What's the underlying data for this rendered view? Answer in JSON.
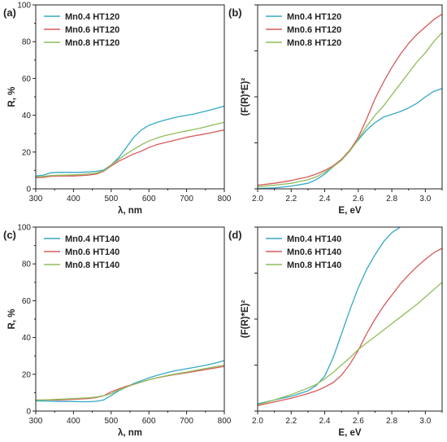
{
  "chart_data": [
    {
      "type": "line",
      "panel_label": "(a)",
      "xlabel": "λ, nm",
      "ylabel": "R, %",
      "xlim": [
        300,
        800
      ],
      "ylim": [
        0,
        100
      ],
      "x_ticks": [
        "300",
        "400",
        "500",
        "600",
        "700",
        "800"
      ],
      "y_ticks": [
        "0",
        "20",
        "40",
        "60",
        "80",
        "100"
      ],
      "legend_position": "top-left",
      "series": [
        {
          "name": "Mn0.4 HT120",
          "color": "#35a9c4",
          "x": [
            300,
            320,
            340,
            360,
            380,
            400,
            420,
            440,
            460,
            480,
            500,
            520,
            540,
            560,
            580,
            600,
            620,
            640,
            660,
            680,
            700,
            720,
            740,
            760,
            780,
            800
          ],
          "y": [
            7,
            7.5,
            8.7,
            9,
            9,
            9,
            9,
            9.2,
            9.5,
            10.2,
            13,
            17,
            22.5,
            28,
            32,
            34.5,
            36,
            37.3,
            38.3,
            39.3,
            40,
            40.7,
            41.7,
            42.7,
            43.8,
            45
          ]
        },
        {
          "name": "Mn0.6 HT120",
          "color": "#d65a5a",
          "x": [
            300,
            320,
            340,
            360,
            380,
            400,
            420,
            440,
            460,
            480,
            500,
            520,
            540,
            560,
            580,
            600,
            620,
            640,
            660,
            680,
            700,
            720,
            740,
            760,
            780,
            800
          ],
          "y": [
            6,
            6.3,
            6.8,
            7,
            7,
            7,
            7.2,
            7.5,
            8,
            9.5,
            12.5,
            15,
            17,
            19,
            20.5,
            22.5,
            24,
            25,
            26,
            27,
            28,
            28.8,
            29.5,
            30.3,
            31.2,
            32
          ]
        },
        {
          "name": "Mn0.8 HT120",
          "color": "#8fbd5a",
          "x": [
            300,
            320,
            340,
            360,
            380,
            400,
            420,
            440,
            460,
            480,
            500,
            520,
            540,
            560,
            580,
            600,
            620,
            640,
            660,
            680,
            700,
            720,
            740,
            760,
            780,
            800
          ],
          "y": [
            6.5,
            6.8,
            7.2,
            7.4,
            7.5,
            7.6,
            7.8,
            8.1,
            8.6,
            9.8,
            13,
            16,
            19,
            21.5,
            24,
            26,
            27.5,
            28.8,
            29.8,
            30.7,
            31.5,
            32.3,
            33.2,
            34.2,
            35.2,
            36.2
          ]
        }
      ]
    },
    {
      "type": "line",
      "panel_label": "(b)",
      "xlabel": "E, eV",
      "ylabel": "(F(R)*E)²",
      "xlim": [
        2.0,
        3.1
      ],
      "ylim": [
        0,
        100
      ],
      "x_ticks": [
        "2.0",
        "2.2",
        "2.4",
        "2.6",
        "2.8",
        "3.0"
      ],
      "y_ticks": [],
      "legend_position": "top-left",
      "series": [
        {
          "name": "Mn0.4 HT120",
          "color": "#35a9c4",
          "x": [
            2.0,
            2.1,
            2.2,
            2.3,
            2.35,
            2.4,
            2.45,
            2.5,
            2.55,
            2.6,
            2.65,
            2.7,
            2.75,
            2.8,
            2.85,
            2.9,
            2.95,
            3.0,
            3.05,
            3.1
          ],
          "y": [
            0.2,
            0.5,
            1.5,
            3,
            5,
            8,
            12,
            16,
            21,
            26.5,
            32,
            36,
            39,
            40.5,
            42,
            44,
            46.5,
            50,
            53,
            54.5
          ]
        },
        {
          "name": "Mn0.6 HT120",
          "color": "#d65a5a",
          "x": [
            2.0,
            2.1,
            2.2,
            2.3,
            2.35,
            2.4,
            2.45,
            2.5,
            2.55,
            2.6,
            2.65,
            2.7,
            2.75,
            2.8,
            2.85,
            2.9,
            2.95,
            3.0,
            3.05,
            3.1
          ],
          "y": [
            2,
            3,
            4.5,
            6.5,
            8,
            10,
            12.5,
            16,
            21,
            28,
            38,
            49,
            58,
            66,
            73,
            79,
            84,
            88,
            92,
            95
          ]
        },
        {
          "name": "Mn0.8 HT120",
          "color": "#8fbd5a",
          "x": [
            2.0,
            2.1,
            2.2,
            2.3,
            2.35,
            2.4,
            2.45,
            2.5,
            2.55,
            2.6,
            2.65,
            2.7,
            2.75,
            2.8,
            2.85,
            2.9,
            2.95,
            3.0,
            3.05,
            3.1
          ],
          "y": [
            1.2,
            2,
            3,
            5,
            6.5,
            9,
            12,
            15.5,
            20.5,
            27,
            34,
            40,
            45,
            51,
            57,
            63,
            69,
            74,
            80,
            85
          ]
        }
      ]
    },
    {
      "type": "line",
      "panel_label": "(c)",
      "xlabel": "λ, nm",
      "ylabel": "R, %",
      "xlim": [
        300,
        800
      ],
      "ylim": [
        0,
        100
      ],
      "x_ticks": [
        "300",
        "400",
        "500",
        "600",
        "700",
        "800"
      ],
      "y_ticks": [
        "0",
        "20",
        "40",
        "60",
        "80",
        "100"
      ],
      "legend_position": "top-left",
      "series": [
        {
          "name": "Mn0.4 HT140",
          "color": "#35a9c4",
          "x": [
            300,
            320,
            340,
            360,
            380,
            400,
            420,
            440,
            460,
            480,
            500,
            520,
            540,
            560,
            580,
            600,
            620,
            640,
            660,
            680,
            700,
            720,
            740,
            760,
            780,
            800
          ],
          "y": [
            5.5,
            5.5,
            5.3,
            5.2,
            5.2,
            5.2,
            5.1,
            5.1,
            5.3,
            6,
            8.5,
            11,
            13,
            15,
            16.5,
            18,
            19.3,
            20.5,
            21.5,
            22.3,
            23,
            23.7,
            24.5,
            25.3,
            26.3,
            27.5
          ]
        },
        {
          "name": "Mn0.6 HT140",
          "color": "#d65a5a",
          "x": [
            300,
            320,
            340,
            360,
            380,
            400,
            420,
            440,
            460,
            480,
            500,
            520,
            540,
            560,
            580,
            600,
            620,
            640,
            660,
            680,
            700,
            720,
            740,
            760,
            780,
            800
          ],
          "y": [
            6,
            6,
            6,
            6,
            6.2,
            6.4,
            6.6,
            6.8,
            7.3,
            8.3,
            10.5,
            12,
            13.5,
            14.5,
            15.8,
            17,
            18,
            18.8,
            19.5,
            20.2,
            20.8,
            21.5,
            22.2,
            22.9,
            23.6,
            24.3
          ]
        },
        {
          "name": "Mn0.8 HT140",
          "color": "#8fbd5a",
          "x": [
            300,
            320,
            340,
            360,
            380,
            400,
            420,
            440,
            460,
            480,
            500,
            520,
            540,
            560,
            580,
            600,
            620,
            640,
            660,
            680,
            700,
            720,
            740,
            760,
            780,
            800
          ],
          "y": [
            6,
            6,
            6.2,
            6.4,
            6.6,
            6.8,
            7,
            7.2,
            7.6,
            8.3,
            9.5,
            11.5,
            13,
            14.5,
            15.8,
            17,
            18,
            19,
            19.8,
            20.5,
            21.2,
            22,
            22.8,
            23.5,
            24.3,
            25
          ]
        }
      ]
    },
    {
      "type": "line",
      "panel_label": "(d)",
      "xlabel": "E, eV",
      "ylabel": "(F(R)*E)²",
      "xlim": [
        2.0,
        3.1
      ],
      "ylim": [
        0,
        100
      ],
      "x_ticks": [
        "2.0",
        "2.2",
        "2.4",
        "2.6",
        "2.8",
        "3.0"
      ],
      "y_ticks": [],
      "legend_position": "top-left",
      "series": [
        {
          "name": "Mn0.4 HT140",
          "color": "#35a9c4",
          "x": [
            2.0,
            2.1,
            2.2,
            2.3,
            2.35,
            2.4,
            2.45,
            2.5,
            2.55,
            2.6,
            2.65,
            2.7,
            2.75,
            2.8,
            2.85
          ],
          "y": [
            4,
            6,
            8,
            11,
            14,
            19,
            29,
            42,
            55,
            67,
            77,
            85,
            92,
            97,
            100
          ]
        },
        {
          "name": "Mn0.6 HT140",
          "color": "#d65a5a",
          "x": [
            2.0,
            2.1,
            2.2,
            2.3,
            2.35,
            2.4,
            2.45,
            2.5,
            2.55,
            2.6,
            2.65,
            2.7,
            2.75,
            2.8,
            2.85,
            2.9,
            2.95,
            3.0,
            3.05,
            3.1
          ],
          "y": [
            3,
            5,
            7,
            9.5,
            11,
            13,
            15.5,
            19.5,
            25.5,
            33,
            42,
            50,
            57,
            63,
            69,
            74,
            78.5,
            82.5,
            86,
            88.5
          ]
        },
        {
          "name": "Mn0.8 HT140",
          "color": "#8fbd5a",
          "x": [
            2.0,
            2.1,
            2.2,
            2.3,
            2.35,
            2.4,
            2.45,
            2.5,
            2.55,
            2.6,
            2.65,
            2.7,
            2.75,
            2.8,
            2.85,
            2.9,
            2.95,
            3.0,
            3.05,
            3.1
          ],
          "y": [
            3.5,
            6,
            9,
            12.5,
            14.5,
            17.5,
            21,
            25,
            29,
            33.5,
            37,
            40.5,
            44,
            47.5,
            51,
            54.5,
            58,
            62,
            66,
            70
          ]
        }
      ]
    }
  ]
}
